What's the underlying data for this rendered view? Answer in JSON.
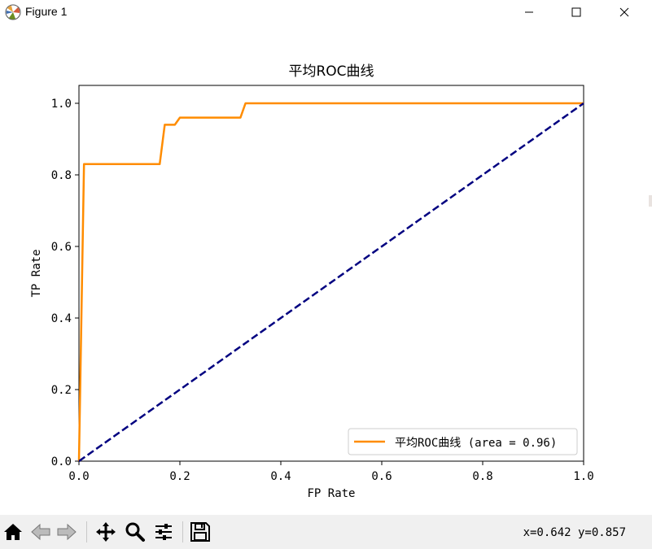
{
  "window": {
    "title": "Figure 1"
  },
  "toolbar": {
    "buttons": [
      {
        "name": "home-button",
        "icon": "home-icon"
      },
      {
        "name": "back-button",
        "icon": "back-arrow-icon"
      },
      {
        "name": "forward-button",
        "icon": "forward-arrow-icon"
      },
      {
        "name": "pan-button",
        "icon": "move-icon"
      },
      {
        "name": "zoom-button",
        "icon": "magnifier-icon"
      },
      {
        "name": "configure-subplots-button",
        "icon": "sliders-icon"
      },
      {
        "name": "save-button",
        "icon": "floppy-disk-icon"
      }
    ],
    "coords": "x=0.642 y=0.857"
  },
  "chart_data": {
    "type": "line",
    "title": "平均ROC曲线",
    "xlabel": "FP Rate",
    "ylabel": "TP Rate",
    "xlim": [
      0.0,
      1.0
    ],
    "ylim": [
      0.0,
      1.05
    ],
    "xticks": [
      "0.0",
      "0.2",
      "0.4",
      "0.6",
      "0.8",
      "1.0"
    ],
    "yticks": [
      "0.0",
      "0.2",
      "0.4",
      "0.6",
      "0.8",
      "1.0"
    ],
    "xtick_values": [
      0.0,
      0.2,
      0.4,
      0.6,
      0.8,
      1.0
    ],
    "ytick_values": [
      0.0,
      0.2,
      0.4,
      0.6,
      0.8,
      1.0
    ],
    "grid": false,
    "legend_position": "lower-right",
    "series": [
      {
        "name": "平均ROC曲线 (area = 0.96)",
        "color": "#ff8c00",
        "style": "solid",
        "x": [
          0.0,
          0.01,
          0.16,
          0.17,
          0.19,
          0.2,
          0.32,
          0.33,
          1.0
        ],
        "y": [
          0.0,
          0.83,
          0.83,
          0.94,
          0.94,
          0.96,
          0.96,
          1.0,
          1.0
        ]
      },
      {
        "color": "#000080",
        "style": "dashed",
        "x": [
          0.0,
          1.0
        ],
        "y": [
          0.0,
          1.0
        ]
      }
    ]
  }
}
